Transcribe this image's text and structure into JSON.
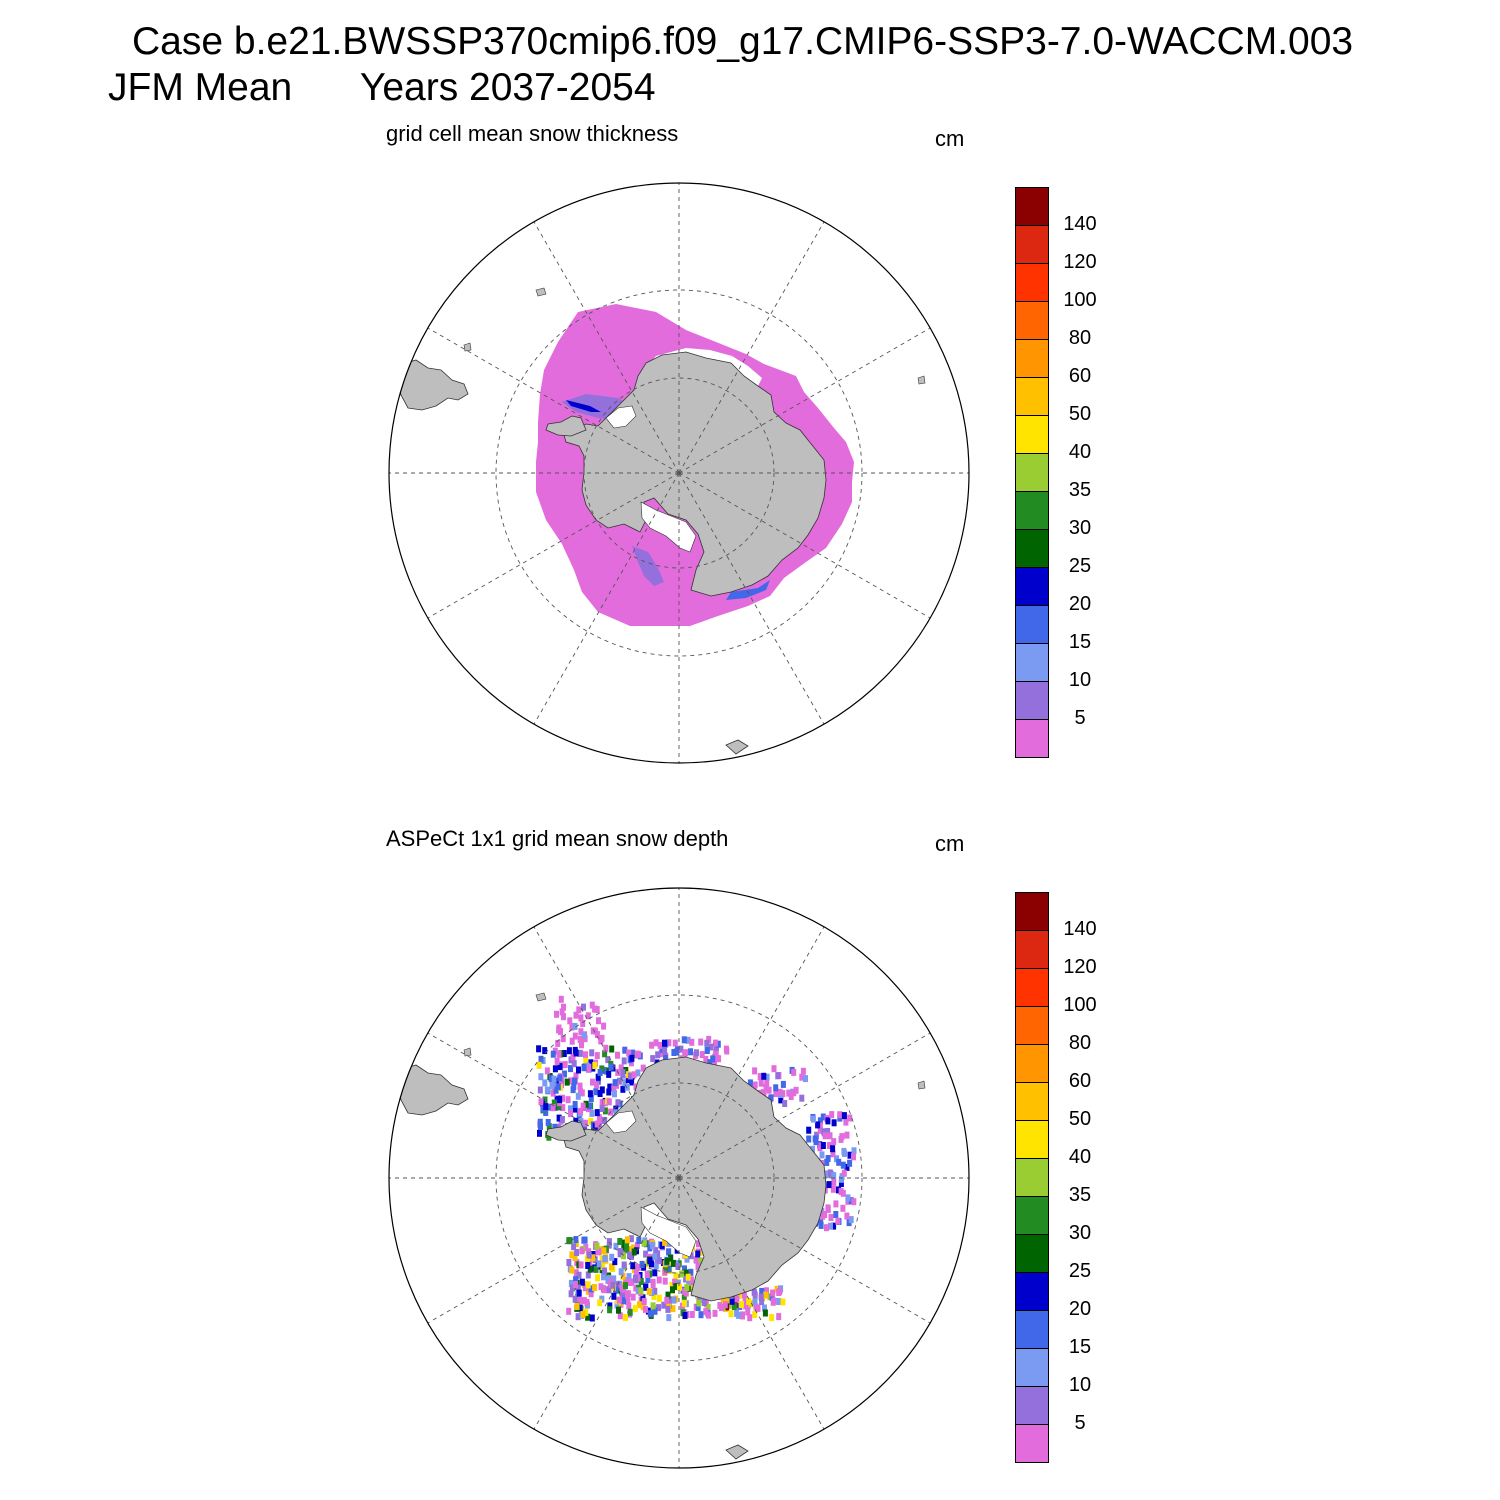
{
  "header": {
    "case_title": "Case b.e21.BWSSP370cmip6.f09_g17.CMIP6-SSP3-7.0-WACCM.003",
    "season": "JFM Mean",
    "years": "Years 2037-2054"
  },
  "colors": {
    "land": "#bebebe",
    "bins": [
      "#e26cdc",
      "#9370db",
      "#7b9bf2",
      "#4068e8",
      "#0000cd",
      "#006400",
      "#228b22",
      "#9acd32",
      "#ffe400",
      "#ffc000",
      "#ff9500",
      "#ff6500",
      "#ff3300",
      "#dd2811",
      "#8b0000"
    ]
  },
  "colorbar": {
    "labels": [
      "5",
      "10",
      "15",
      "20",
      "25",
      "30",
      "35",
      "40",
      "50",
      "60",
      "80",
      "100",
      "120",
      "140"
    ]
  },
  "panels": [
    {
      "title": "grid cell mean snow thickness",
      "units": "cm",
      "projection": "polar-stereographic-south"
    },
    {
      "title": "ASPeCt 1x1 grid mean snow depth",
      "units": "cm",
      "projection": "polar-stereographic-south"
    }
  ]
}
